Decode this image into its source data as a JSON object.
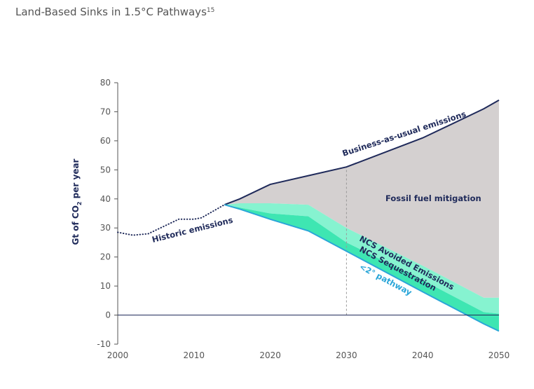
{
  "chart_data": {
    "type": "area",
    "title": "Land-Based Sinks in 1.5°C Pathways",
    "title_superscript": "15",
    "y_label_parts": [
      "Gt of CO",
      "2",
      " per year"
    ],
    "xlim": [
      2000,
      2050
    ],
    "xticks": [
      2000,
      2010,
      2020,
      2030,
      2040,
      2050
    ],
    "ylim": [
      -10,
      80
    ],
    "yticks": [
      -10,
      0,
      10,
      20,
      30,
      40,
      50,
      60,
      70,
      80
    ],
    "vline": 2030,
    "historic": {
      "color": "#1f2a5a",
      "x": [
        2000,
        2002,
        2004,
        2006,
        2008,
        2010,
        2011,
        2012,
        2014
      ],
      "values": [
        28.5,
        27.5,
        28,
        30.5,
        33,
        33,
        33.5,
        35,
        38
      ]
    },
    "x": [
      2014,
      2016,
      2020,
      2025,
      2030,
      2040,
      2048,
      2050
    ],
    "series": [
      {
        "color": "#1f2a5a",
        "fill": "#d4d0d0",
        "values": [
          38,
          40,
          45,
          48,
          51,
          61,
          71,
          74
        ]
      },
      {
        "fill": "#86f3d0",
        "values": [
          38,
          38.5,
          38.5,
          38,
          30,
          17,
          6,
          6
        ]
      },
      {
        "fill": "#3ee6b2",
        "values": [
          38,
          37,
          35,
          34,
          25,
          12,
          1,
          0.5
        ]
      },
      {
        "color": "#2aa6d8",
        "values": [
          38,
          36.5,
          33,
          29,
          22,
          8,
          -3,
          -5.5
        ]
      }
    ],
    "annotations": [
      "Business-as-usual emissions",
      "Fossil fuel mitigation",
      "Historic emissions",
      "NCS Avoided Emissions",
      "NCS Sequestration",
      "<2° pathway"
    ]
  }
}
